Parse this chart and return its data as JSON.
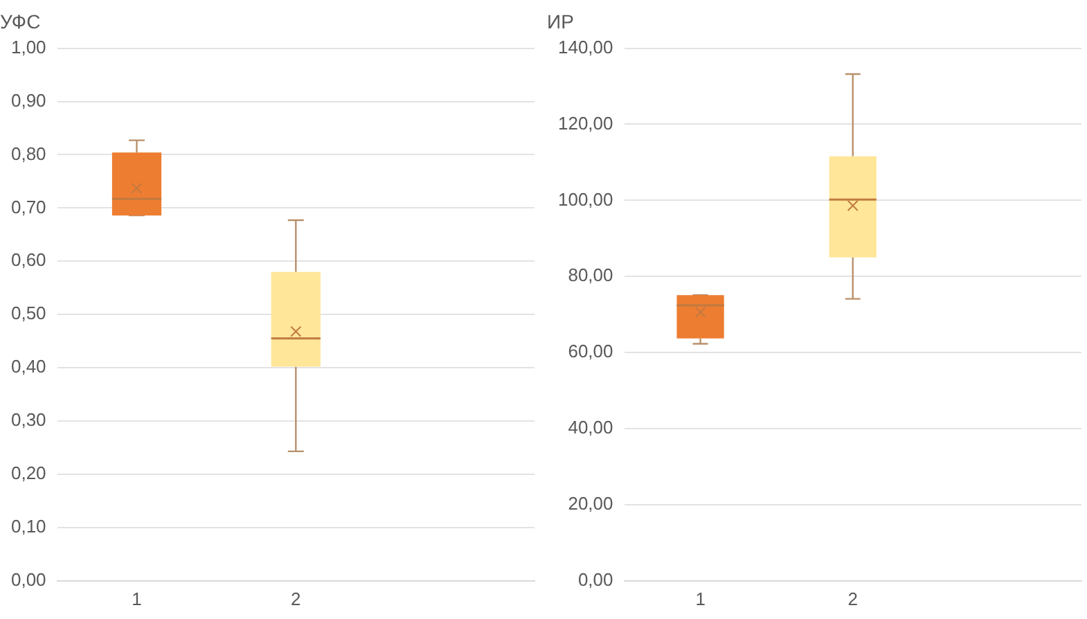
{
  "chart_data": [
    {
      "type": "box",
      "title": "УФС",
      "categories": [
        "1",
        "2"
      ],
      "colors": [
        "#ed7d31",
        "#ffe699"
      ],
      "boxes": [
        {
          "low": 0.686,
          "q1": 0.686,
          "median": 0.717,
          "q3": 0.804,
          "high": 0.827,
          "mean": 0.737
        },
        {
          "low": 0.243,
          "q1": 0.402,
          "median": 0.455,
          "q3": 0.58,
          "high": 0.677,
          "mean": 0.468
        }
      ],
      "ylim": [
        0,
        1
      ],
      "yticks": [
        {
          "value": 0,
          "label": "0,00"
        },
        {
          "value": 0.1,
          "label": "0,10"
        },
        {
          "value": 0.2,
          "label": "0,20"
        },
        {
          "value": 0.3,
          "label": "0,30"
        },
        {
          "value": 0.4,
          "label": "0,40"
        },
        {
          "value": 0.5,
          "label": "0,50"
        },
        {
          "value": 0.6,
          "label": "0,60"
        },
        {
          "value": 0.7,
          "label": "0,70"
        },
        {
          "value": 0.8,
          "label": "0,80"
        },
        {
          "value": 0.9,
          "label": "0,90"
        },
        {
          "value": 1,
          "label": "1,00"
        }
      ],
      "grid": "y"
    },
    {
      "type": "box",
      "title": "ИР",
      "categories": [
        "1",
        "2"
      ],
      "colors": [
        "#ed7d31",
        "#ffe699"
      ],
      "boxes": [
        {
          "low": 62.3,
          "q1": 63.7,
          "median": 72.4,
          "q3": 75.1,
          "high": 75.1,
          "mean": 70.6
        },
        {
          "low": 74.1,
          "q1": 85,
          "median": 100.2,
          "q3": 111.6,
          "high": 133.2,
          "mean": 98.6
        }
      ],
      "ylim": [
        0,
        140
      ],
      "yticks": [
        {
          "value": 0,
          "label": "0,00"
        },
        {
          "value": 20,
          "label": "20,00"
        },
        {
          "value": 40,
          "label": "40,00"
        },
        {
          "value": 60,
          "label": "60,00"
        },
        {
          "value": 80,
          "label": "80,00"
        },
        {
          "value": 100,
          "label": "100,00"
        },
        {
          "value": 120,
          "label": "120,00"
        },
        {
          "value": 140,
          "label": "140,00"
        }
      ],
      "grid": "y"
    }
  ]
}
